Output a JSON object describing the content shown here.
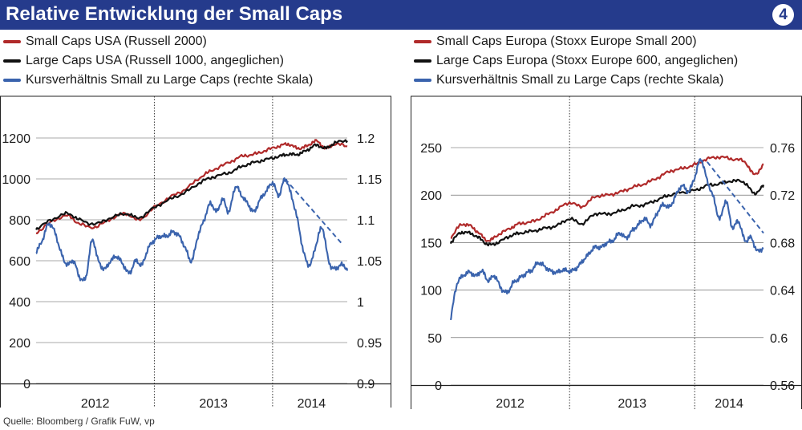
{
  "title": "Relative Entwicklung der Small Caps",
  "badge": "4",
  "colors": {
    "header_bg": "#253b8c",
    "small_caps": "#b02a2a",
    "large_caps": "#111111",
    "ratio": "#3a63ad"
  },
  "source": "Quelle: Bloomberg / Grafik FuW, vp",
  "chart_data": [
    {
      "type": "line",
      "name": "USA",
      "legend": [
        {
          "label": "Small Caps USA (Russell 2000)",
          "color": "#b02a2a"
        },
        {
          "label": "Large Caps USA (Russell 1000, angeglichen)",
          "color": "#111111"
        },
        {
          "label": "Kursverhältnis Small zu Large Caps (rechte Skala)",
          "color": "#3a63ad"
        }
      ],
      "x_labels": [
        {
          "label": "2012",
          "t": 0.19
        },
        {
          "label": "2013",
          "t": 0.57
        },
        {
          "label": "2014",
          "t": 0.885
        }
      ],
      "year_dividers": [
        0.38,
        0.76
      ],
      "left_axis": {
        "min": 0,
        "max": 1200,
        "ticks": [
          0,
          200,
          400,
          600,
          800,
          1000,
          1200
        ]
      },
      "right_axis": {
        "min": 0.9,
        "max": 1.2,
        "ticks": [
          "0.9",
          "0.95",
          "1",
          "1.05",
          "1.1",
          "1.15",
          "1.2"
        ]
      },
      "series": [
        {
          "name": "Small Caps USA (Russell 2000)",
          "axis": "left",
          "color": "#b02a2a",
          "points": [
            [
              0,
              735
            ],
            [
              0.05,
              790
            ],
            [
              0.1,
              820
            ],
            [
              0.14,
              780
            ],
            [
              0.19,
              765
            ],
            [
              0.24,
              805
            ],
            [
              0.29,
              830
            ],
            [
              0.33,
              800
            ],
            [
              0.38,
              860
            ],
            [
              0.43,
              910
            ],
            [
              0.48,
              950
            ],
            [
              0.53,
              1010
            ],
            [
              0.57,
              1045
            ],
            [
              0.62,
              1080
            ],
            [
              0.66,
              1110
            ],
            [
              0.7,
              1120
            ],
            [
              0.74,
              1140
            ],
            [
              0.78,
              1160
            ],
            [
              0.81,
              1170
            ],
            [
              0.84,
              1150
            ],
            [
              0.87,
              1160
            ],
            [
              0.9,
              1185
            ],
            [
              0.93,
              1150
            ],
            [
              0.96,
              1170
            ],
            [
              1,
              1160
            ]
          ]
        },
        {
          "name": "Large Caps USA (Russell 1000, angeglichen)",
          "axis": "left",
          "color": "#111111",
          "points": [
            [
              0,
              755
            ],
            [
              0.05,
              800
            ],
            [
              0.1,
              830
            ],
            [
              0.14,
              800
            ],
            [
              0.19,
              780
            ],
            [
              0.24,
              810
            ],
            [
              0.29,
              830
            ],
            [
              0.33,
              810
            ],
            [
              0.38,
              860
            ],
            [
              0.43,
              900
            ],
            [
              0.48,
              935
            ],
            [
              0.53,
              985
            ],
            [
              0.57,
              1010
            ],
            [
              0.62,
              1030
            ],
            [
              0.66,
              1060
            ],
            [
              0.7,
              1080
            ],
            [
              0.74,
              1095
            ],
            [
              0.78,
              1110
            ],
            [
              0.81,
              1120
            ],
            [
              0.84,
              1120
            ],
            [
              0.87,
              1140
            ],
            [
              0.9,
              1165
            ],
            [
              0.93,
              1150
            ],
            [
              0.96,
              1175
            ],
            [
              1,
              1190
            ]
          ]
        },
        {
          "name": "Kursverhältnis Small zu Large Caps (rechte Skala)",
          "axis": "right",
          "color": "#3a63ad",
          "points": [
            [
              0,
              1.06
            ],
            [
              0.02,
              1.075
            ],
            [
              0.04,
              1.095
            ],
            [
              0.06,
              1.085
            ],
            [
              0.08,
              1.06
            ],
            [
              0.1,
              1.045
            ],
            [
              0.12,
              1.05
            ],
            [
              0.14,
              1.03
            ],
            [
              0.16,
              1.03
            ],
            [
              0.18,
              1.075
            ],
            [
              0.2,
              1.05
            ],
            [
              0.22,
              1.04
            ],
            [
              0.24,
              1.05
            ],
            [
              0.26,
              1.055
            ],
            [
              0.28,
              1.045
            ],
            [
              0.3,
              1.035
            ],
            [
              0.32,
              1.05
            ],
            [
              0.34,
              1.045
            ],
            [
              0.36,
              1.065
            ],
            [
              0.38,
              1.075
            ],
            [
              0.4,
              1.08
            ],
            [
              0.42,
              1.08
            ],
            [
              0.44,
              1.085
            ],
            [
              0.46,
              1.08
            ],
            [
              0.48,
              1.065
            ],
            [
              0.5,
              1.05
            ],
            [
              0.52,
              1.08
            ],
            [
              0.54,
              1.1
            ],
            [
              0.56,
              1.12
            ],
            [
              0.58,
              1.11
            ],
            [
              0.6,
              1.125
            ],
            [
              0.62,
              1.11
            ],
            [
              0.64,
              1.14
            ],
            [
              0.66,
              1.13
            ],
            [
              0.68,
              1.12
            ],
            [
              0.7,
              1.11
            ],
            [
              0.72,
              1.125
            ],
            [
              0.74,
              1.135
            ],
            [
              0.76,
              1.145
            ],
            [
              0.78,
              1.13
            ],
            [
              0.8,
              1.15
            ],
            [
              0.82,
              1.13
            ],
            [
              0.84,
              1.1
            ],
            [
              0.86,
              1.06
            ],
            [
              0.88,
              1.045
            ],
            [
              0.9,
              1.07
            ],
            [
              0.92,
              1.09
            ],
            [
              0.94,
              1.05
            ],
            [
              0.96,
              1.04
            ],
            [
              0.98,
              1.045
            ],
            [
              1,
              1.04
            ]
          ]
        }
      ],
      "trend": {
        "color": "#3a63ad",
        "axis": "right",
        "from": [
          0.8,
          1.15
        ],
        "to": [
          0.98,
          1.072
        ]
      }
    },
    {
      "type": "line",
      "name": "Europa",
      "legend": [
        {
          "label": "Small Caps Europa (Stoxx Europe Small 200)",
          "color": "#b02a2a"
        },
        {
          "label": "Large Caps Europa (Stoxx Europe 600, angeglichen)",
          "color": "#111111"
        },
        {
          "label": "Kursverhältnis Small zu Large Caps (rechte Skala)",
          "color": "#3a63ad"
        }
      ],
      "x_labels": [
        {
          "label": "2012",
          "t": 0.19
        },
        {
          "label": "2013",
          "t": 0.58
        },
        {
          "label": "2014",
          "t": 0.89
        }
      ],
      "year_dividers": [
        0.38,
        0.78
      ],
      "left_axis": {
        "min": 0,
        "max": 250,
        "ticks": [
          0,
          50,
          100,
          150,
          200,
          250
        ]
      },
      "right_axis": {
        "min": 0.56,
        "max": 0.76,
        "ticks": [
          "0.56",
          "0.6",
          "0.64",
          "0.68",
          "0.72",
          "0.76"
        ]
      },
      "series": [
        {
          "name": "Small Caps Europa (Stoxx Europe Small 200)",
          "axis": "left",
          "color": "#b02a2a",
          "points": [
            [
              0,
              155
            ],
            [
              0.03,
              168
            ],
            [
              0.06,
              168
            ],
            [
              0.09,
              160
            ],
            [
              0.12,
              152
            ],
            [
              0.15,
              158
            ],
            [
              0.19,
              165
            ],
            [
              0.22,
              170
            ],
            [
              0.26,
              172
            ],
            [
              0.3,
              178
            ],
            [
              0.34,
              185
            ],
            [
              0.38,
              192
            ],
            [
              0.42,
              188
            ],
            [
              0.46,
              198
            ],
            [
              0.5,
              200
            ],
            [
              0.54,
              203
            ],
            [
              0.58,
              208
            ],
            [
              0.62,
              212
            ],
            [
              0.66,
              218
            ],
            [
              0.7,
              225
            ],
            [
              0.74,
              228
            ],
            [
              0.78,
              232
            ],
            [
              0.82,
              238
            ],
            [
              0.86,
              240
            ],
            [
              0.9,
              238
            ],
            [
              0.94,
              235
            ],
            [
              0.97,
              222
            ],
            [
              1,
              232
            ]
          ]
        },
        {
          "name": "Large Caps Europa (Stoxx Europe 600, angeglichen)",
          "axis": "left",
          "color": "#111111",
          "points": [
            [
              0,
              150
            ],
            [
              0.03,
              160
            ],
            [
              0.06,
              160
            ],
            [
              0.09,
              155
            ],
            [
              0.12,
              148
            ],
            [
              0.15,
              150
            ],
            [
              0.19,
              157
            ],
            [
              0.22,
              160
            ],
            [
              0.26,
              162
            ],
            [
              0.3,
              165
            ],
            [
              0.34,
              168
            ],
            [
              0.38,
              175
            ],
            [
              0.42,
              170
            ],
            [
              0.46,
              180
            ],
            [
              0.5,
              180
            ],
            [
              0.54,
              183
            ],
            [
              0.58,
              188
            ],
            [
              0.62,
              190
            ],
            [
              0.66,
              195
            ],
            [
              0.7,
              200
            ],
            [
              0.74,
              203
            ],
            [
              0.78,
              205
            ],
            [
              0.82,
              210
            ],
            [
              0.86,
              212
            ],
            [
              0.9,
              215
            ],
            [
              0.94,
              213
            ],
            [
              0.97,
              202
            ],
            [
              1,
              210
            ]
          ]
        },
        {
          "name": "Kursverhältnis Small zu Large Caps (rechte Skala)",
          "axis": "right",
          "color": "#3a63ad",
          "points": [
            [
              0,
              0.616
            ],
            [
              0.02,
              0.645
            ],
            [
              0.04,
              0.652
            ],
            [
              0.06,
              0.655
            ],
            [
              0.08,
              0.652
            ],
            [
              0.1,
              0.656
            ],
            [
              0.12,
              0.648
            ],
            [
              0.14,
              0.652
            ],
            [
              0.16,
              0.642
            ],
            [
              0.18,
              0.638
            ],
            [
              0.2,
              0.646
            ],
            [
              0.22,
              0.65
            ],
            [
              0.24,
              0.654
            ],
            [
              0.26,
              0.657
            ],
            [
              0.28,
              0.663
            ],
            [
              0.3,
              0.66
            ],
            [
              0.32,
              0.656
            ],
            [
              0.34,
              0.655
            ],
            [
              0.36,
              0.657
            ],
            [
              0.38,
              0.656
            ],
            [
              0.4,
              0.658
            ],
            [
              0.42,
              0.664
            ],
            [
              0.44,
              0.67
            ],
            [
              0.46,
              0.676
            ],
            [
              0.48,
              0.676
            ],
            [
              0.5,
              0.68
            ],
            [
              0.52,
              0.682
            ],
            [
              0.54,
              0.688
            ],
            [
              0.56,
              0.684
            ],
            [
              0.58,
              0.69
            ],
            [
              0.6,
              0.695
            ],
            [
              0.62,
              0.7
            ],
            [
              0.64,
              0.695
            ],
            [
              0.66,
              0.705
            ],
            [
              0.68,
              0.712
            ],
            [
              0.7,
              0.71
            ],
            [
              0.72,
              0.72
            ],
            [
              0.74,
              0.728
            ],
            [
              0.76,
              0.723
            ],
            [
              0.78,
              0.735
            ],
            [
              0.8,
              0.75
            ],
            [
              0.82,
              0.732
            ],
            [
              0.84,
              0.718
            ],
            [
              0.86,
              0.7
            ],
            [
              0.88,
              0.715
            ],
            [
              0.9,
              0.693
            ],
            [
              0.92,
              0.698
            ],
            [
              0.94,
              0.682
            ],
            [
              0.96,
              0.684
            ],
            [
              0.98,
              0.673
            ],
            [
              1,
              0.676
            ]
          ]
        }
      ],
      "trend": {
        "color": "#3a63ad",
        "axis": "right",
        "from": [
          0.82,
          0.748
        ],
        "to": [
          1,
          0.688
        ]
      }
    }
  ]
}
